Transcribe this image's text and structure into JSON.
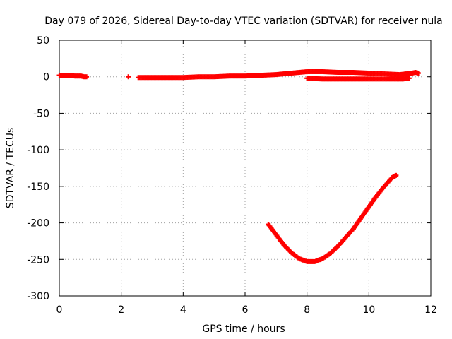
{
  "chart_data": {
    "type": "scatter",
    "title": "Day 079 of 2026, Sidereal Day-to-day VTEC variation (SDTVAR) for receiver nula",
    "xlabel": "GPS time / hours",
    "ylabel": "SDTVAR / TECUs",
    "xlim": [
      0,
      12
    ],
    "ylim": [
      -300,
      50
    ],
    "xticks": [
      0,
      2,
      4,
      6,
      8,
      10,
      12
    ],
    "yticks": [
      50,
      0,
      -50,
      -100,
      -150,
      -200,
      -250,
      -300
    ],
    "grid": true,
    "marker": "plus",
    "color": "#ff0000",
    "series": [
      {
        "name": "segment-early",
        "x": [
          0.0,
          0.1,
          0.2,
          0.3,
          0.4,
          0.5,
          0.6,
          0.7,
          0.8,
          0.88
        ],
        "y": [
          2,
          2,
          2,
          2,
          2,
          1,
          1,
          1,
          0,
          0
        ]
      },
      {
        "name": "isolated-point",
        "x": [
          2.23
        ],
        "y": [
          0
        ]
      },
      {
        "name": "segment-main",
        "x": [
          2.55,
          3.0,
          3.5,
          4.0,
          4.5,
          5.0,
          5.5,
          6.0,
          6.5,
          7.0,
          7.5,
          8.0,
          8.5,
          9.0,
          9.5,
          10.0,
          10.5,
          11.0,
          11.2,
          11.4,
          11.5,
          11.6
        ],
        "y": [
          -1,
          -1,
          -1,
          -1,
          0,
          0,
          1,
          1,
          2,
          3,
          5,
          7,
          7,
          6,
          6,
          5,
          4,
          3,
          4,
          5,
          6,
          5
        ]
      },
      {
        "name": "segment-lower-branch",
        "x": [
          8.0,
          8.5,
          9.0,
          9.5,
          10.0,
          10.5,
          10.9,
          11.1,
          11.3
        ],
        "y": [
          -2,
          -3,
          -3,
          -3,
          -3,
          -3,
          -3,
          -3,
          -2
        ]
      },
      {
        "name": "segment-curve",
        "x": [
          6.75,
          7.0,
          7.25,
          7.5,
          7.75,
          8.0,
          8.25,
          8.5,
          8.75,
          9.0,
          9.25,
          9.5,
          9.75,
          10.0,
          10.25,
          10.5,
          10.75,
          10.88
        ],
        "y": [
          -202,
          -216,
          -230,
          -241,
          -249,
          -253,
          -253,
          -249,
          -242,
          -232,
          -220,
          -208,
          -193,
          -178,
          -163,
          -150,
          -138,
          -135
        ]
      }
    ]
  }
}
